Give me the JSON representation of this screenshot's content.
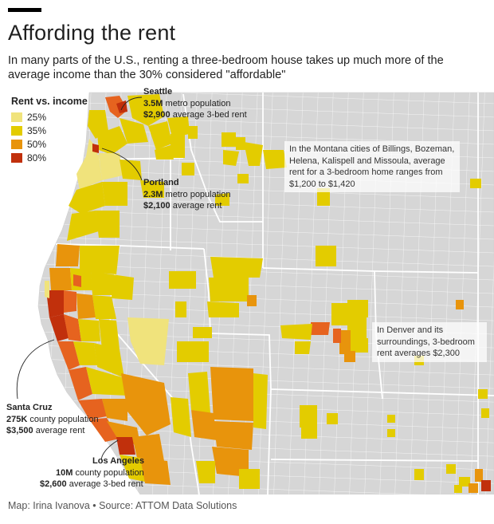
{
  "header": {
    "title": "Affording the rent",
    "subtitle": "In many parts of the U.S., renting a three-bedroom house takes up much more of the average income than the 30% considered \"affordable\""
  },
  "legend": {
    "title": "Rent vs. income",
    "items": [
      {
        "label": "25%",
        "color": "#f0e37c"
      },
      {
        "label": "35%",
        "color": "#e3cc00"
      },
      {
        "label": "50%",
        "color": "#e8940c"
      },
      {
        "label": "80%",
        "color": "#c1300c"
      }
    ]
  },
  "colors": {
    "county_fill": "#d6d6d6",
    "county_border": "#ffffff",
    "state_border": "#ffffff",
    "tier_25": "#f0e37c",
    "tier_35": "#e3cc00",
    "tier_50": "#e8940c",
    "tier_65": "#e6631f",
    "tier_80": "#c1300c"
  },
  "callouts": {
    "seattle": {
      "name": "Seattle",
      "line1_num": "3.5M",
      "line1_text": " metro population",
      "line2_num": "$2,900",
      "line2_text": " average 3-bed rent"
    },
    "portland": {
      "name": "Portland",
      "line1_num": "2.3M",
      "line1_text": " metro population",
      "line2_num": "$2,100",
      "line2_text": " average rent"
    },
    "santa_cruz": {
      "name": "Santa Cruz",
      "line1_num": "275K",
      "line1_text": " county population",
      "line2_num": "$3,500",
      "line2_text": " average rent"
    },
    "los_angeles": {
      "name": "Los Angeles",
      "line1_num": "10M",
      "line1_text": " county population",
      "line2_num": "$2,600",
      "line2_text": " average 3-bed rent"
    }
  },
  "notes": {
    "montana": "In the Montana cities of Billings, Bozeman, Helena, Kalispell and Missoula, average rent for a 3-bedroom home ranges from $1,200 to $1,420",
    "denver": "In Denver and its surroundings, 3-bedroom rent averages $2,300"
  },
  "footer": {
    "credit": "Map: Irina Ivanova • Source: ATTOM Data Solutions"
  }
}
